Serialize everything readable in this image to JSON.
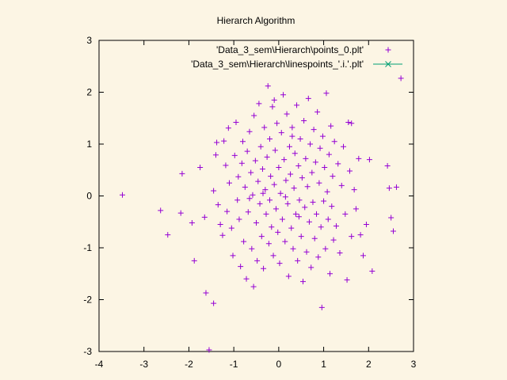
{
  "chart_data": {
    "type": "scatter",
    "title": "Hierarch Algorithm",
    "xlabel": "",
    "ylabel": "",
    "xlim": [
      -4,
      3
    ],
    "ylim": [
      -3,
      3
    ],
    "xticks": [
      -4,
      -3,
      -2,
      -1,
      0,
      1,
      2,
      3
    ],
    "yticks": [
      -3,
      -2,
      -1,
      0,
      1,
      2,
      3
    ],
    "grid": false,
    "legend_position": "top-right",
    "series": [
      {
        "name": "'Data_3_sem\\Hierarch\\points_0.plt'",
        "marker": "+",
        "color": "#9400d3",
        "points": [
          [
            -3.48,
            0.02
          ],
          [
            -2.63,
            -0.28
          ],
          [
            -2.47,
            -0.75
          ],
          [
            -2.15,
            0.43
          ],
          [
            -2.18,
            -0.33
          ],
          [
            -1.88,
            -1.25
          ],
          [
            -1.93,
            -0.52
          ],
          [
            -1.75,
            0.55
          ],
          [
            -1.65,
            -0.41
          ],
          [
            -1.62,
            -1.87
          ],
          [
            -1.55,
            -2.97
          ],
          [
            -1.45,
            -2.07
          ],
          [
            -1.45,
            0.1
          ],
          [
            -1.4,
            0.79
          ],
          [
            -1.38,
            1.03
          ],
          [
            -1.35,
            -0.17
          ],
          [
            -1.3,
            -0.55
          ],
          [
            -1.25,
            -0.76
          ],
          [
            -1.22,
            1.06
          ],
          [
            -1.18,
            0.59
          ],
          [
            -1.15,
            -0.3
          ],
          [
            -1.12,
            1.31
          ],
          [
            -1.1,
            0.25
          ],
          [
            -1.05,
            -0.62
          ],
          [
            -1.02,
            -1.15
          ],
          [
            -0.98,
            0.78
          ],
          [
            -0.95,
            1.42
          ],
          [
            -0.92,
            -0.08
          ],
          [
            -0.9,
            0.37
          ],
          [
            -0.88,
            -0.45
          ],
          [
            -0.85,
            -1.36
          ],
          [
            -0.82,
            0.63
          ],
          [
            -0.8,
            1.05
          ],
          [
            -0.78,
            -0.88
          ],
          [
            -0.75,
            0.17
          ],
          [
            -0.72,
            -1.6
          ],
          [
            -0.7,
            0.86
          ],
          [
            -0.68,
            -0.31
          ],
          [
            -0.65,
            1.24
          ],
          [
            -0.62,
            0.45
          ],
          [
            -0.6,
            -1.02
          ],
          [
            -0.58,
            0.02
          ],
          [
            -0.56,
            -1.75
          ],
          [
            -0.55,
            1.55
          ],
          [
            -0.52,
            0.68
          ],
          [
            -0.5,
            -0.52
          ],
          [
            -0.48,
            -1.25
          ],
          [
            -0.46,
            0.28
          ],
          [
            -0.44,
            1.78
          ],
          [
            -0.42,
            -0.15
          ],
          [
            -0.4,
            0.95
          ],
          [
            -0.38,
            -0.78
          ],
          [
            -0.36,
            0.52
          ],
          [
            -0.34,
            -1.4
          ],
          [
            -0.32,
            1.32
          ],
          [
            -0.3,
            0.12
          ],
          [
            -0.28,
            -0.35
          ],
          [
            -0.26,
            0.75
          ],
          [
            -0.24,
            2.12
          ],
          [
            -0.22,
            -0.92
          ],
          [
            -0.2,
            1.1
          ],
          [
            -0.18,
            0.38
          ],
          [
            -0.16,
            -0.6
          ],
          [
            -0.14,
            1.72
          ],
          [
            -0.12,
            -1.15
          ],
          [
            -0.1,
            0.22
          ],
          [
            -0.08,
            0.88
          ],
          [
            -0.06,
            -0.25
          ],
          [
            -0.04,
            1.4
          ],
          [
            -0.02,
            -0.7
          ],
          [
            0.0,
            0.55
          ],
          [
            0.02,
            -1.3
          ],
          [
            0.04,
            0.05
          ],
          [
            0.06,
            1.22
          ],
          [
            0.08,
            -0.45
          ],
          [
            0.1,
            1.95
          ],
          [
            0.12,
            0.7
          ],
          [
            0.14,
            -0.88
          ],
          [
            0.16,
            0.3
          ],
          [
            0.18,
            1.58
          ],
          [
            0.2,
            -0.15
          ],
          [
            0.22,
            -1.55
          ],
          [
            0.24,
            0.95
          ],
          [
            0.26,
            0.42
          ],
          [
            0.28,
            -0.62
          ],
          [
            0.3,
            1.32
          ],
          [
            0.32,
            -1.02
          ],
          [
            0.34,
            0.15
          ],
          [
            0.36,
            0.82
          ],
          [
            0.38,
            -0.35
          ],
          [
            0.4,
            1.75
          ],
          [
            0.42,
            -1.25
          ],
          [
            0.44,
            0.58
          ],
          [
            0.46,
            -0.08
          ],
          [
            0.48,
            1.1
          ],
          [
            0.5,
            -0.78
          ],
          [
            0.52,
            0.35
          ],
          [
            0.54,
            -1.65
          ],
          [
            0.56,
            1.45
          ],
          [
            0.58,
            -0.22
          ],
          [
            0.6,
            0.72
          ],
          [
            0.62,
            -1.08
          ],
          [
            0.64,
            0.18
          ],
          [
            0.66,
            1.88
          ],
          [
            0.68,
            -0.5
          ],
          [
            0.7,
            1.0
          ],
          [
            0.72,
            -1.38
          ],
          [
            0.74,
            0.45
          ],
          [
            0.76,
            -0.12
          ],
          [
            0.78,
            1.28
          ],
          [
            0.8,
            -0.82
          ],
          [
            0.82,
            0.65
          ],
          [
            0.84,
            -0.35
          ],
          [
            0.86,
            1.62
          ],
          [
            0.88,
            -1.18
          ],
          [
            0.9,
            0.25
          ],
          [
            0.92,
            0.92
          ],
          [
            0.94,
            -0.6
          ],
          [
            0.96,
            -2.15
          ],
          [
            0.98,
            1.15
          ],
          [
            1.0,
            -0.1
          ],
          [
            1.02,
            0.55
          ],
          [
            1.04,
            -1.02
          ],
          [
            1.06,
            1.98
          ],
          [
            1.08,
            0.08
          ],
          [
            1.1,
            -0.45
          ],
          [
            1.12,
            0.8
          ],
          [
            1.14,
            -1.5
          ],
          [
            1.16,
            1.35
          ],
          [
            1.18,
            -0.2
          ],
          [
            1.2,
            0.38
          ],
          [
            1.22,
            -0.85
          ],
          [
            1.24,
            1.05
          ],
          [
            1.28,
            -0.58
          ],
          [
            1.32,
            0.62
          ],
          [
            1.36,
            -1.1
          ],
          [
            1.4,
            0.2
          ],
          [
            1.44,
            0.95
          ],
          [
            1.48,
            -0.35
          ],
          [
            1.52,
            -1.62
          ],
          [
            1.55,
            1.42
          ],
          [
            1.58,
            0.48
          ],
          [
            1.62,
            -0.78
          ],
          [
            1.68,
            0.12
          ],
          [
            1.72,
            -0.25
          ],
          [
            1.78,
            0.72
          ],
          [
            1.82,
            -0.75
          ],
          [
            1.88,
            -1.15
          ],
          [
            1.95,
            -0.55
          ],
          [
            2.02,
            0.7
          ],
          [
            2.08,
            -1.45
          ],
          [
            2.42,
            0.58
          ],
          [
            2.46,
            0.15
          ],
          [
            2.5,
            -0.42
          ],
          [
            2.55,
            -0.68
          ],
          [
            2.62,
            0.17
          ],
          [
            2.72,
            2.27
          ],
          [
            1.62,
            1.4
          ],
          [
            -0.1,
            1.85
          ],
          [
            0.3,
            1.15
          ],
          [
            -0.65,
            -0.05
          ],
          [
            0.15,
            -0.02
          ],
          [
            -0.35,
            0.05
          ],
          [
            0.45,
            -0.4
          ],
          [
            -0.2,
            -0.08
          ]
        ]
      },
      {
        "name": "'Data_3_sem\\Hierarch\\linespoints_'.i.'.plt'",
        "marker": "x",
        "color": "#009e73",
        "points": []
      }
    ]
  }
}
